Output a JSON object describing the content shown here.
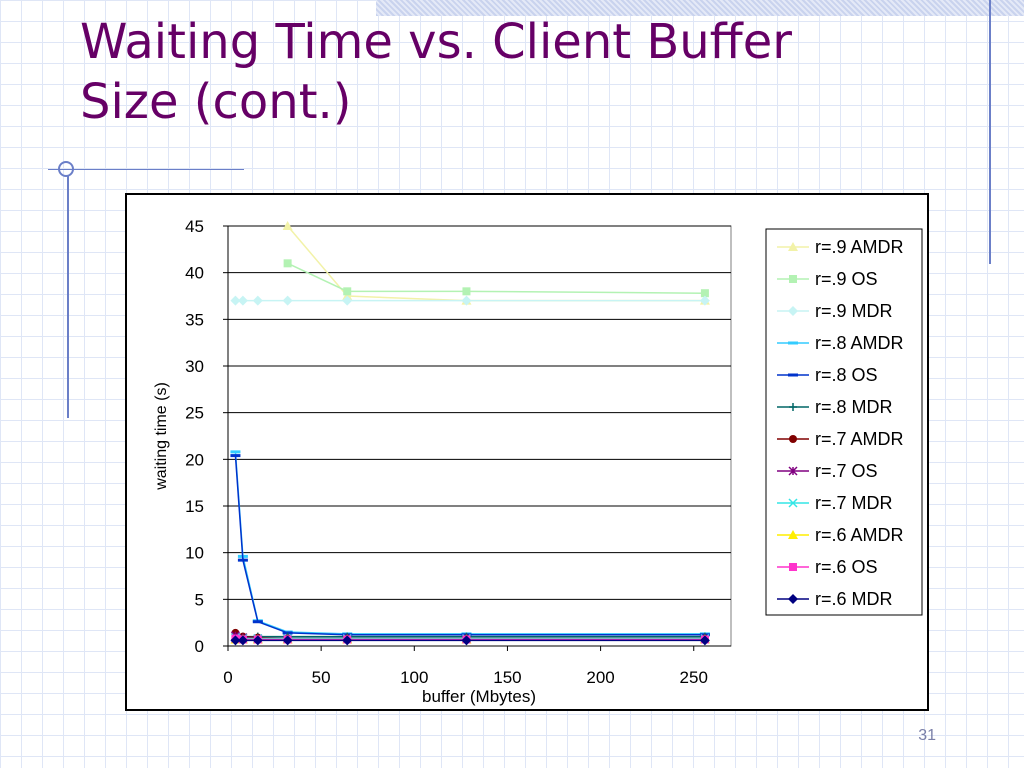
{
  "slide": {
    "title_line1": "Waiting Time vs. Client Buffer",
    "title_line2": "Size (cont.)",
    "slide_number": "31"
  },
  "colors": {
    "title": "#660066",
    "grid_lines": "#6b7fc8"
  },
  "chart_data": {
    "type": "line",
    "xlabel": "buffer (Mbytes)",
    "ylabel": "waiting time (s)",
    "xlim": [
      0,
      270
    ],
    "ylim": [
      0,
      45
    ],
    "x_ticks": [
      0,
      50,
      100,
      150,
      200,
      250
    ],
    "y_ticks": [
      0,
      5,
      10,
      15,
      20,
      25,
      30,
      35,
      40,
      45
    ],
    "grid": "horizontal",
    "legend_position": "right",
    "series": [
      {
        "name": "r=.9 AMDR",
        "color": "#f2f2a8",
        "marker": "triangle",
        "x": [
          32,
          64,
          128,
          256
        ],
        "y": [
          45,
          37.5,
          37,
          37
        ]
      },
      {
        "name": "r=.9 OS",
        "color": "#b3f2b3",
        "marker": "square",
        "x": [
          32,
          64,
          128,
          256
        ],
        "y": [
          41,
          38,
          38,
          37.8
        ]
      },
      {
        "name": "r=.9 MDR",
        "color": "#c7f4f4",
        "marker": "diamond",
        "x": [
          4,
          8,
          16,
          32,
          64,
          128,
          256
        ],
        "y": [
          37,
          37,
          37,
          37,
          37,
          37,
          37
        ]
      },
      {
        "name": "r=.8 AMDR",
        "color": "#33ccff",
        "marker": "dash",
        "x": [
          4,
          8,
          16,
          32,
          64,
          128,
          256
        ],
        "y": [
          20.8,
          9.6,
          2.7,
          1.5,
          1.3,
          1.3,
          1.3
        ]
      },
      {
        "name": "r=.8 OS",
        "color": "#0033cc",
        "marker": "dash",
        "x": [
          4,
          8,
          16,
          32,
          64,
          128,
          256
        ],
        "y": [
          20.4,
          9.2,
          2.6,
          1.4,
          1.2,
          1.2,
          1.2
        ]
      },
      {
        "name": "r=.8 MDR",
        "color": "#006666",
        "marker": "plus",
        "x": [
          4,
          8,
          16,
          32,
          64,
          128,
          256
        ],
        "y": [
          1.0,
          1.0,
          1.0,
          1.0,
          1.0,
          1.0,
          1.0
        ]
      },
      {
        "name": "r=.7 AMDR",
        "color": "#800000",
        "marker": "circle",
        "x": [
          4,
          8,
          16,
          32,
          64,
          128,
          256
        ],
        "y": [
          1.4,
          1.0,
          0.9,
          0.8,
          0.8,
          0.8,
          0.8
        ]
      },
      {
        "name": "r=.7 OS",
        "color": "#800080",
        "marker": "star",
        "x": [
          4,
          8,
          16,
          32,
          64,
          128,
          256
        ],
        "y": [
          1.1,
          0.9,
          0.8,
          0.8,
          0.8,
          0.8,
          0.8
        ]
      },
      {
        "name": "r=.7 MDR",
        "color": "#33e6e6",
        "marker": "cross",
        "x": [
          4,
          8,
          16,
          32,
          64,
          128,
          256
        ],
        "y": [
          0.9,
          0.8,
          0.8,
          0.8,
          0.8,
          0.8,
          0.8
        ]
      },
      {
        "name": "r=.6 AMDR",
        "color": "#ffee00",
        "marker": "triangle",
        "x": [
          4,
          8,
          16,
          32,
          64,
          128,
          256
        ],
        "y": [
          0.7,
          0.7,
          0.7,
          0.7,
          0.7,
          0.7,
          0.7
        ]
      },
      {
        "name": "r=.6 OS",
        "color": "#ff33cc",
        "marker": "square",
        "x": [
          4,
          8,
          16,
          32,
          64,
          128,
          256
        ],
        "y": [
          0.8,
          0.7,
          0.7,
          0.7,
          0.7,
          0.7,
          0.7
        ]
      },
      {
        "name": "r=.6 MDR",
        "color": "#000080",
        "marker": "diamond",
        "x": [
          4,
          8,
          16,
          32,
          64,
          128,
          256
        ],
        "y": [
          0.6,
          0.6,
          0.6,
          0.6,
          0.6,
          0.6,
          0.6
        ]
      }
    ]
  }
}
